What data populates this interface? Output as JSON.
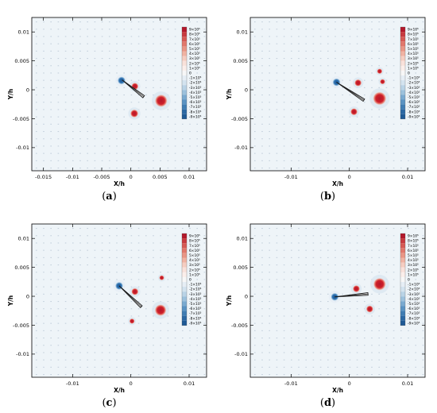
{
  "figure": {
    "panels": [
      {
        "caption_open": "(",
        "caption_letter": "a",
        "caption_close": ")",
        "chart_data": {
          "type": "heatmap",
          "xlabel": "X/h",
          "ylabel": "Y/h",
          "xlim": [
            -0.017,
            0.013
          ],
          "ylim": [
            -0.014,
            0.0125
          ],
          "xticks": [
            "-0.015",
            "-0.01",
            "-0.005",
            "0",
            "0.005",
            "0.01"
          ],
          "xtick_values": [
            -0.015,
            -0.01,
            -0.005,
            0,
            0.005,
            0.01
          ],
          "yticks": [
            "0.01",
            "0.005",
            "0",
            "-0.005",
            "-0.01"
          ],
          "ytick_values": [
            0.01,
            0.005,
            0,
            -0.005,
            -0.01
          ],
          "plate": {
            "x1": -0.0015,
            "y1": 0.0017,
            "x2": 0.0022,
            "y2": -0.0012
          },
          "vortices": [
            {
              "x": -0.0016,
              "y": 0.0016,
              "sign": "negative",
              "size": 0.00045
            },
            {
              "x": 0.0007,
              "y": 0.0006,
              "sign": "positive",
              "size": 0.0004
            },
            {
              "x": 0.0052,
              "y": -0.0019,
              "sign": "positive",
              "size": 0.0007
            },
            {
              "x": 0.0006,
              "y": -0.0041,
              "sign": "positive",
              "size": 0.00045
            }
          ]
        }
      },
      {
        "caption_open": "(",
        "caption_letter": "b",
        "caption_close": ")",
        "chart_data": {
          "type": "heatmap",
          "xlabel": "X/h",
          "ylabel": "Y/h",
          "xlim": [
            -0.017,
            0.013
          ],
          "ylim": [
            -0.014,
            0.0125
          ],
          "xticks": [
            "-0.01",
            "0",
            "0.01"
          ],
          "xtick_values": [
            -0.01,
            0,
            0.01
          ],
          "yticks": [
            "0.01",
            "0.005",
            "0",
            "-0.005",
            "-0.01"
          ],
          "ytick_values": [
            0.01,
            0.005,
            0,
            -0.005,
            -0.01
          ],
          "plate": {
            "x1": -0.0022,
            "y1": 0.0013,
            "x2": 0.0025,
            "y2": -0.0018
          },
          "vortices": [
            {
              "x": -0.0022,
              "y": 0.0013,
              "sign": "negative",
              "size": 0.00045
            },
            {
              "x": 0.0015,
              "y": 0.0012,
              "sign": "positive",
              "size": 0.0004
            },
            {
              "x": 0.0052,
              "y": 0.0032,
              "sign": "positive",
              "size": 0.0003
            },
            {
              "x": 0.0057,
              "y": 0.0014,
              "sign": "positive",
              "size": 0.0003
            },
            {
              "x": 0.0052,
              "y": -0.0015,
              "sign": "positive",
              "size": 0.00075
            },
            {
              "x": 0.0008,
              "y": -0.0038,
              "sign": "positive",
              "size": 0.0004
            }
          ]
        }
      },
      {
        "caption_open": "(",
        "caption_letter": "c",
        "caption_close": ")",
        "chart_data": {
          "type": "heatmap",
          "xlabel": "X/h",
          "ylabel": "Y/h",
          "xlim": [
            -0.017,
            0.013
          ],
          "ylim": [
            -0.014,
            0.0125
          ],
          "xticks": [
            "-0.01",
            "0",
            "0.01"
          ],
          "xtick_values": [
            -0.01,
            0,
            0.01
          ],
          "yticks": [
            "0.01",
            "0.005",
            "0",
            "-0.005",
            "-0.01"
          ],
          "ytick_values": [
            0.01,
            0.005,
            0,
            -0.005,
            -0.01
          ],
          "plate": {
            "x1": -0.002,
            "y1": 0.0018,
            "x2": 0.0018,
            "y2": -0.0018
          },
          "vortices": [
            {
              "x": -0.002,
              "y": 0.0018,
              "sign": "negative",
              "size": 0.00045
            },
            {
              "x": 0.0007,
              "y": 0.0008,
              "sign": "positive",
              "size": 0.0004
            },
            {
              "x": 0.0053,
              "y": 0.0032,
              "sign": "positive",
              "size": 0.00028
            },
            {
              "x": 0.0051,
              "y": -0.0024,
              "sign": "positive",
              "size": 0.00065
            },
            {
              "x": 0.0002,
              "y": -0.0043,
              "sign": "positive",
              "size": 0.0003
            }
          ]
        }
      },
      {
        "caption_open": "(",
        "caption_letter": "d",
        "caption_close": ")",
        "chart_data": {
          "type": "heatmap",
          "xlabel": "X/h",
          "ylabel": "Y/h",
          "xlim": [
            -0.017,
            0.013
          ],
          "ylim": [
            -0.014,
            0.0125
          ],
          "xticks": [
            "-0.01",
            "0",
            "0.01"
          ],
          "xtick_values": [
            -0.01,
            0,
            0.01
          ],
          "yticks": [
            "0.01",
            "0.005",
            "0",
            "-0.005",
            "-0.01"
          ],
          "ytick_values": [
            0.01,
            0.005,
            0,
            -0.005,
            -0.01
          ],
          "plate": {
            "x1": -0.0025,
            "y1": -0.0001,
            "x2": 0.0032,
            "y2": 0.0004
          },
          "vortices": [
            {
              "x": -0.0025,
              "y": -0.0001,
              "sign": "negative",
              "size": 0.00045
            },
            {
              "x": 0.0012,
              "y": 0.0013,
              "sign": "positive",
              "size": 0.0004
            },
            {
              "x": 0.0052,
              "y": 0.0021,
              "sign": "positive",
              "size": 0.0007
            },
            {
              "x": 0.0035,
              "y": -0.0022,
              "sign": "positive",
              "size": 0.0004
            }
          ]
        }
      }
    ],
    "colorbar": {
      "labels": [
        "9×10⁵",
        "8×10⁵",
        "7×10⁵",
        "6×10⁵",
        "5×10⁵",
        "4×10⁵",
        "3×10⁵",
        "2×10⁵",
        "1×10⁵",
        "0",
        "-1×10⁵",
        "-2×10⁵",
        "-3×10⁵",
        "-4×10⁵",
        "-5×10⁵",
        "-6×10⁵",
        "-7×10⁵",
        "-8×10⁵",
        "-9×10⁵"
      ],
      "colors": [
        "#b2182b",
        "#c73a3f",
        "#d65a55",
        "#e1786c",
        "#e99686",
        "#f0b3a3",
        "#f5cdc1",
        "#f9e1da",
        "#fbeeea",
        "#f7f7f7",
        "#e6eef5",
        "#d3e3ef",
        "#b9d3e6",
        "#9cc1dc",
        "#7aaad0",
        "#5a93c2",
        "#3f7db3",
        "#2b68a3",
        "#1f5a96"
      ]
    },
    "colors": {
      "background": "#eef4f8",
      "positive": "#d0202a",
      "negative": "#2c6fb0",
      "plate": "#1a1a1a",
      "dots": "#c4d0dc"
    }
  }
}
